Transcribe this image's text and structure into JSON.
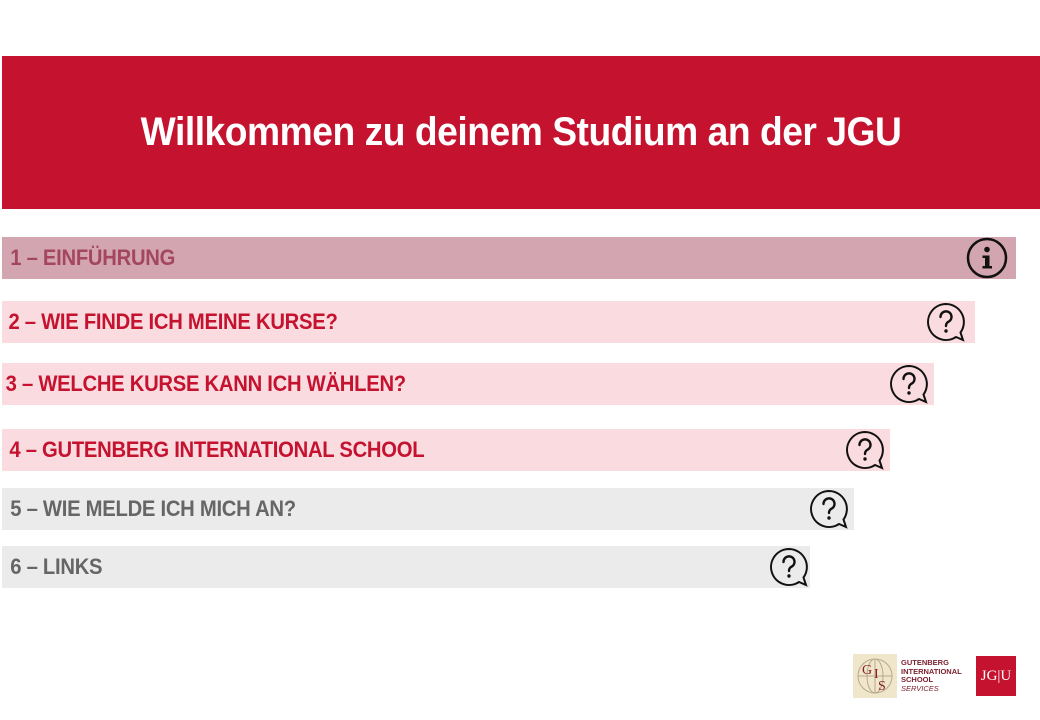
{
  "header": {
    "title": "Willkommen zu deinem Studium an der JGU"
  },
  "menu": [
    {
      "label": "1 – EINFÜHRUNG",
      "icon": "info-icon"
    },
    {
      "label": "2 – WIE FINDE ICH MEINE KURSE?",
      "icon": "question-bubble-icon"
    },
    {
      "label": "3 – WELCHE KURSE KANN ICH WÄHLEN?",
      "icon": "question-bubble-icon"
    },
    {
      "label": "4 – GUTENBERG INTERNATIONAL SCHOOL",
      "icon": "question-bubble-icon"
    },
    {
      "label": "5 – WIE MELDE ICH MICH AN?",
      "icon": "question-bubble-icon"
    },
    {
      "label": "6 – LINKS",
      "icon": "question-bubble-icon"
    }
  ],
  "footer": {
    "gis_logo": {
      "mark_letters": "GIS",
      "lines": [
        "GUTENBERG",
        "INTERNATIONAL",
        "SCHOOL",
        "SERVICES"
      ]
    },
    "jgu_logo": "JG|U"
  },
  "colors": {
    "brand_red": "#c5122f",
    "active_item_bg": "#d3a5b0",
    "pink_item_bg": "#fadce0",
    "grey_item_bg": "#ebebeb"
  }
}
